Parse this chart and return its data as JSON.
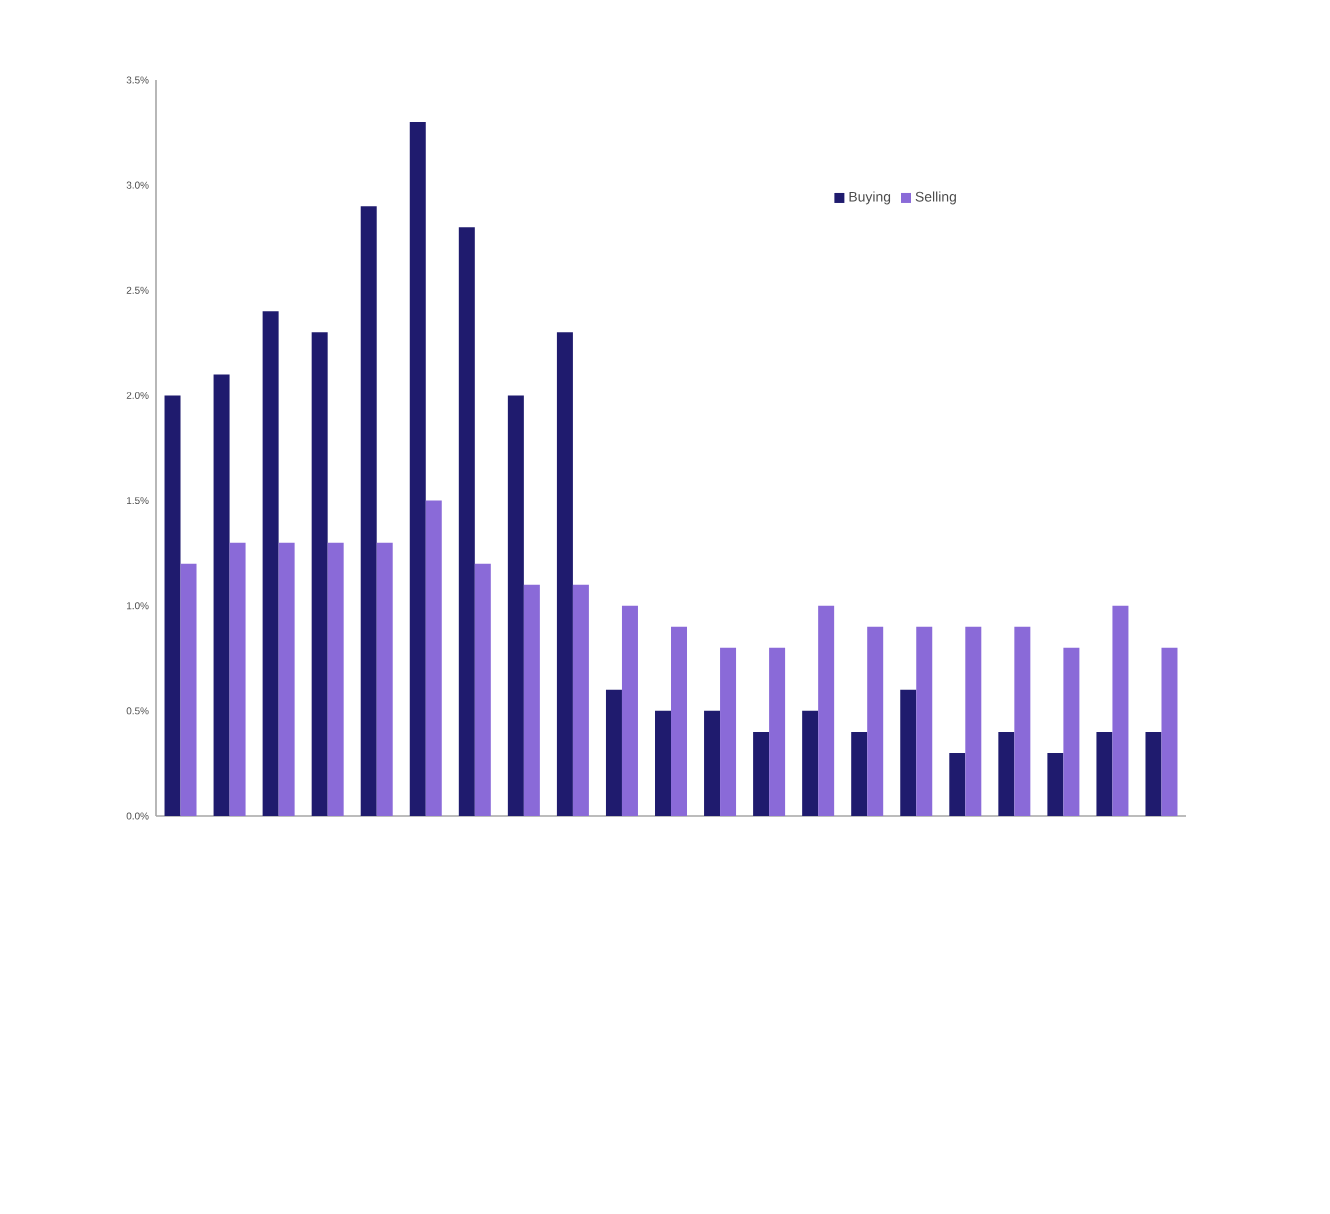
{
  "chart_data": {
    "type": "bar",
    "categories": [
      null,
      null,
      null,
      null,
      null,
      null,
      null,
      null,
      null,
      null,
      null,
      null,
      null,
      null,
      null,
      null,
      null,
      null,
      null,
      null,
      null
    ],
    "series": [
      {
        "name": "Buying",
        "color": "#1f1b6e",
        "values": [
          2.0,
          2.1,
          2.4,
          2.3,
          2.9,
          3.3,
          2.8,
          2.0,
          2.3,
          0.6,
          0.5,
          0.5,
          0.4,
          0.5,
          0.4,
          0.6,
          0.3,
          0.4,
          0.3,
          0.4,
          0.4
        ]
      },
      {
        "name": "Selling",
        "color": "#8a6ad8",
        "values": [
          1.2,
          1.3,
          1.3,
          1.3,
          1.3,
          1.5,
          1.2,
          1.1,
          1.1,
          1.0,
          0.9,
          0.8,
          0.8,
          1.0,
          0.9,
          0.9,
          0.9,
          0.9,
          0.8,
          1.0,
          0.8
        ]
      }
    ],
    "ylim": [
      0,
      3.5
    ],
    "yticks": [
      {
        "value": 0,
        "label": "0.0%"
      },
      {
        "value": 0.5,
        "label": "0.5%"
      },
      {
        "value": 1.0,
        "label": "1.0%"
      },
      {
        "value": 1.5,
        "label": "1.5%"
      },
      {
        "value": 2.0,
        "label": "2.0%"
      },
      {
        "value": 2.5,
        "label": "2.5%"
      },
      {
        "value": 3.0,
        "label": "3.0%"
      },
      {
        "value": 3.5,
        "label": "3.5%"
      }
    ],
    "legend": "top right",
    "grid": false
  }
}
